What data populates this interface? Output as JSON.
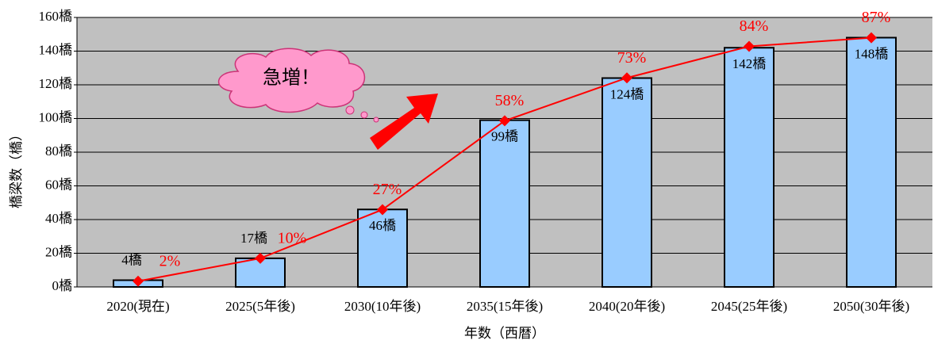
{
  "chart_data": {
    "type": "bar",
    "y_label": "橋梁数（橋）",
    "x_label": "年数（西暦）",
    "annotation": "急増！",
    "categories": [
      "2020(現在)",
      "2025(5年後)",
      "2030(10年後)",
      "2035(15年後)",
      "2040(20年後)",
      "2045(25年後)",
      "2050(30年後)"
    ],
    "series": [
      {
        "type": "bar",
        "color": "#99ccff",
        "values": [
          4,
          17,
          46,
          99,
          124,
          142,
          148
        ],
        "value_labels": [
          "4橋",
          "17橋",
          "46橋",
          "99橋",
          "124橋",
          "142橋",
          "148橋"
        ]
      },
      {
        "type": "line",
        "axis": "y2",
        "color": "#ff0000",
        "values": [
          2,
          10,
          27,
          58,
          73,
          84,
          87
        ],
        "value_labels": [
          "2%",
          "10%",
          "27%",
          "58%",
          "73%",
          "84%",
          "87%"
        ]
      }
    ],
    "ylim": [
      0,
      160
    ],
    "yticks": [
      {
        "value": 0,
        "label": "0橋"
      },
      {
        "value": 20,
        "label": "20橋"
      },
      {
        "value": 40,
        "label": "40橋"
      },
      {
        "value": 60,
        "label": "60橋"
      },
      {
        "value": 80,
        "label": "80橋"
      },
      {
        "value": 100,
        "label": "100橋"
      },
      {
        "value": 120,
        "label": "120橋"
      },
      {
        "value": 140,
        "label": "140橋"
      },
      {
        "value": 160,
        "label": "160橋"
      }
    ],
    "y2lim": [
      0,
      94.1
    ],
    "grid": true,
    "plot_background": "#c0c0c0"
  }
}
